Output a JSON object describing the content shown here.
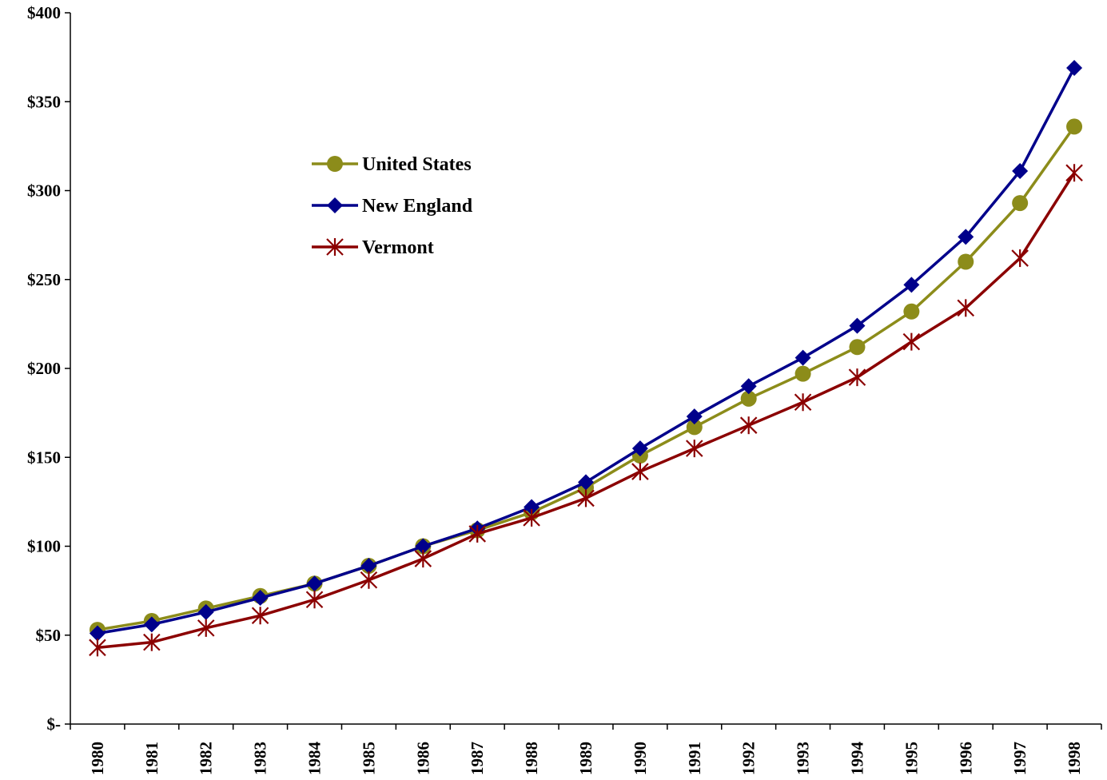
{
  "chart_data": {
    "type": "line",
    "title": "",
    "xlabel": "",
    "ylabel": "",
    "x": [
      "1980",
      "1981",
      "1982",
      "1983",
      "1984",
      "1985",
      "1986",
      "1987",
      "1988",
      "1989",
      "1990",
      "1991",
      "1992",
      "1993",
      "1994",
      "1995",
      "1996",
      "1997",
      "1998"
    ],
    "ylim": [
      0,
      400
    ],
    "yticks": [
      0,
      50,
      100,
      150,
      200,
      250,
      300,
      350,
      400
    ],
    "ytick_labels": [
      "$-",
      "$50",
      "$100",
      "$150",
      "$200",
      "$250",
      "$300",
      "$350",
      "$400"
    ],
    "grid": false,
    "legend_position": "upper-left-center",
    "series": [
      {
        "name": "United States",
        "color": "#8c8c1a",
        "marker": "circle",
        "values": [
          53,
          58,
          65,
          72,
          79,
          89,
          100,
          109,
          119,
          133,
          151,
          167,
          183,
          197,
          212,
          232,
          260,
          293,
          336
        ]
      },
      {
        "name": "New England",
        "color": "#00008b",
        "marker": "diamond",
        "values": [
          51,
          56,
          63,
          71,
          79,
          89,
          100,
          110,
          122,
          136,
          155,
          173,
          190,
          206,
          224,
          247,
          274,
          311,
          369
        ]
      },
      {
        "name": "Vermont",
        "color": "#8b0000",
        "marker": "asterisk",
        "values": [
          43,
          46,
          54,
          61,
          70,
          81,
          93,
          107,
          116,
          127,
          142,
          155,
          168,
          181,
          195,
          215,
          234,
          262,
          310
        ]
      }
    ]
  }
}
